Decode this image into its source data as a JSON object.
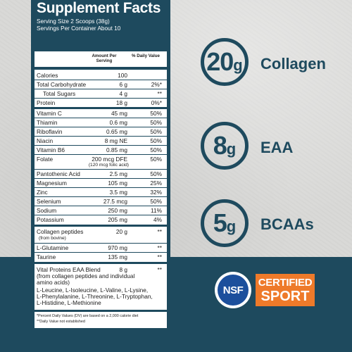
{
  "facts": {
    "title": "Supplement Facts",
    "serving_size": "Serving Size 2 Scoops (38g)",
    "servings_per_container": "Servings Per Container About 10",
    "header_amount": "Amount Per Serving",
    "header_dv": "% Daily Value",
    "rows": [
      {
        "name": "Calories",
        "amount": "100",
        "dv": ""
      },
      {
        "name": "Total Carbohydrate",
        "amount": "6 g",
        "dv": "2%*"
      },
      {
        "name": "Total Sugars",
        "amount": "4 g",
        "dv": "**"
      },
      {
        "name": "Protein",
        "amount": "18 g",
        "dv": "0%*"
      },
      {
        "name": "Vitamin C",
        "amount": "45 mg",
        "dv": "50%"
      },
      {
        "name": "Thiamin",
        "amount": "0.6 mg",
        "dv": "50%"
      },
      {
        "name": "Riboflavin",
        "amount": "0.65 mg",
        "dv": "50%"
      },
      {
        "name": "Niacin",
        "amount": "8 mg NE",
        "dv": "50%"
      },
      {
        "name": "Vitamin B6",
        "amount": "0.85 mg",
        "dv": "50%"
      },
      {
        "name": "Folate",
        "amount": "200 mcg DFE",
        "dv": "50%",
        "sub": "(120 mcg folic acid)"
      },
      {
        "name": "Pantothenic Acid",
        "amount": "2.5 mg",
        "dv": "50%"
      },
      {
        "name": "Magnesium",
        "amount": "105 mg",
        "dv": "25%"
      },
      {
        "name": "Zinc",
        "amount": "3.5 mg",
        "dv": "32%"
      },
      {
        "name": "Selenium",
        "amount": "27.5 mcg",
        "dv": "50%"
      },
      {
        "name": "Sodium",
        "amount": "250 mg",
        "dv": "11%"
      },
      {
        "name": "Potassium",
        "amount": "205 mg",
        "dv": "4%"
      },
      {
        "name": "Collagen peptides",
        "amount": "20 g",
        "dv": "**",
        "sub": "(from bovine)"
      },
      {
        "name": "L-Glutamine",
        "amount": "970 mg",
        "dv": "**"
      },
      {
        "name": "Taurine",
        "amount": "135 mg",
        "dv": "**"
      },
      {
        "name": "Vital Proteins EAA Blend",
        "amount": "8 g",
        "dv": "**"
      }
    ],
    "blend_note_1": "(from collagen peptides and individual",
    "blend_note_2": "amino acids)",
    "blend_list_1": "L-Leucine, L-Isoleucine, L-Valine, L-Lysine,",
    "blend_list_2": "L-Phenylalanine, L-Threonine, L-Tryptophan,",
    "blend_list_3": "L-Histidine, L-Methionine",
    "footnote_1": "*Percent Daily Values (DV) are based on a 2,000 calorie diet",
    "footnote_2": "**Daily Value not established"
  },
  "highlights": [
    {
      "number": "20",
      "unit": "g",
      "label": "Collagen"
    },
    {
      "number": "8",
      "unit": "g",
      "label": "EAA"
    },
    {
      "number": "5",
      "unit": "g",
      "label": "BCAAs"
    }
  ],
  "badge": {
    "nsf": "NSF",
    "certified": "CERTIFIED",
    "sport": "SPORT"
  },
  "colors": {
    "navy": "#1e4a5e",
    "nsf_blue": "#1c4f9c",
    "nsf_orange": "#ee7a2a"
  }
}
